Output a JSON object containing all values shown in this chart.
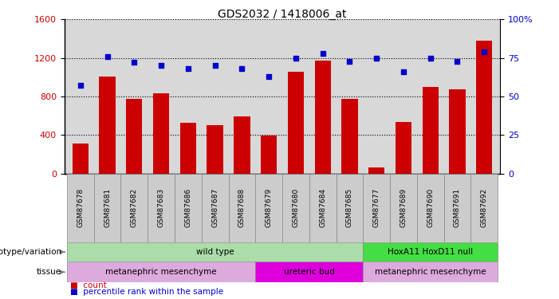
{
  "title": "GDS2032 / 1418006_at",
  "samples": [
    "GSM87678",
    "GSM87681",
    "GSM87682",
    "GSM87683",
    "GSM87686",
    "GSM87687",
    "GSM87688",
    "GSM87679",
    "GSM87680",
    "GSM87684",
    "GSM87685",
    "GSM87677",
    "GSM87689",
    "GSM87690",
    "GSM87691",
    "GSM87692"
  ],
  "counts": [
    310,
    1010,
    775,
    830,
    530,
    500,
    590,
    390,
    1060,
    1175,
    775,
    60,
    535,
    900,
    870,
    1380
  ],
  "percentiles": [
    57,
    76,
    72,
    70,
    68,
    70,
    68,
    63,
    75,
    78,
    73,
    75,
    66,
    75,
    73,
    79
  ],
  "ylim_left": [
    0,
    1600
  ],
  "ylim_right": [
    0,
    100
  ],
  "yticks_left": [
    0,
    400,
    800,
    1200,
    1600
  ],
  "yticks_right": [
    0,
    25,
    50,
    75,
    100
  ],
  "bar_color": "#cc0000",
  "dot_color": "#0000cc",
  "bg_color": "#d8d8d8",
  "genotype_groups": [
    {
      "label": "wild type",
      "start": 0,
      "end": 11,
      "color": "#aaddaa"
    },
    {
      "label": "HoxA11 HoxD11 null",
      "start": 11,
      "end": 16,
      "color": "#44dd44"
    }
  ],
  "tissue_groups": [
    {
      "label": "metanephric mesenchyme",
      "start": 0,
      "end": 7,
      "color": "#ddaadd"
    },
    {
      "label": "ureteric bud",
      "start": 7,
      "end": 11,
      "color": "#dd00dd"
    },
    {
      "label": "metanephric mesenchyme",
      "start": 11,
      "end": 16,
      "color": "#ddaadd"
    }
  ]
}
